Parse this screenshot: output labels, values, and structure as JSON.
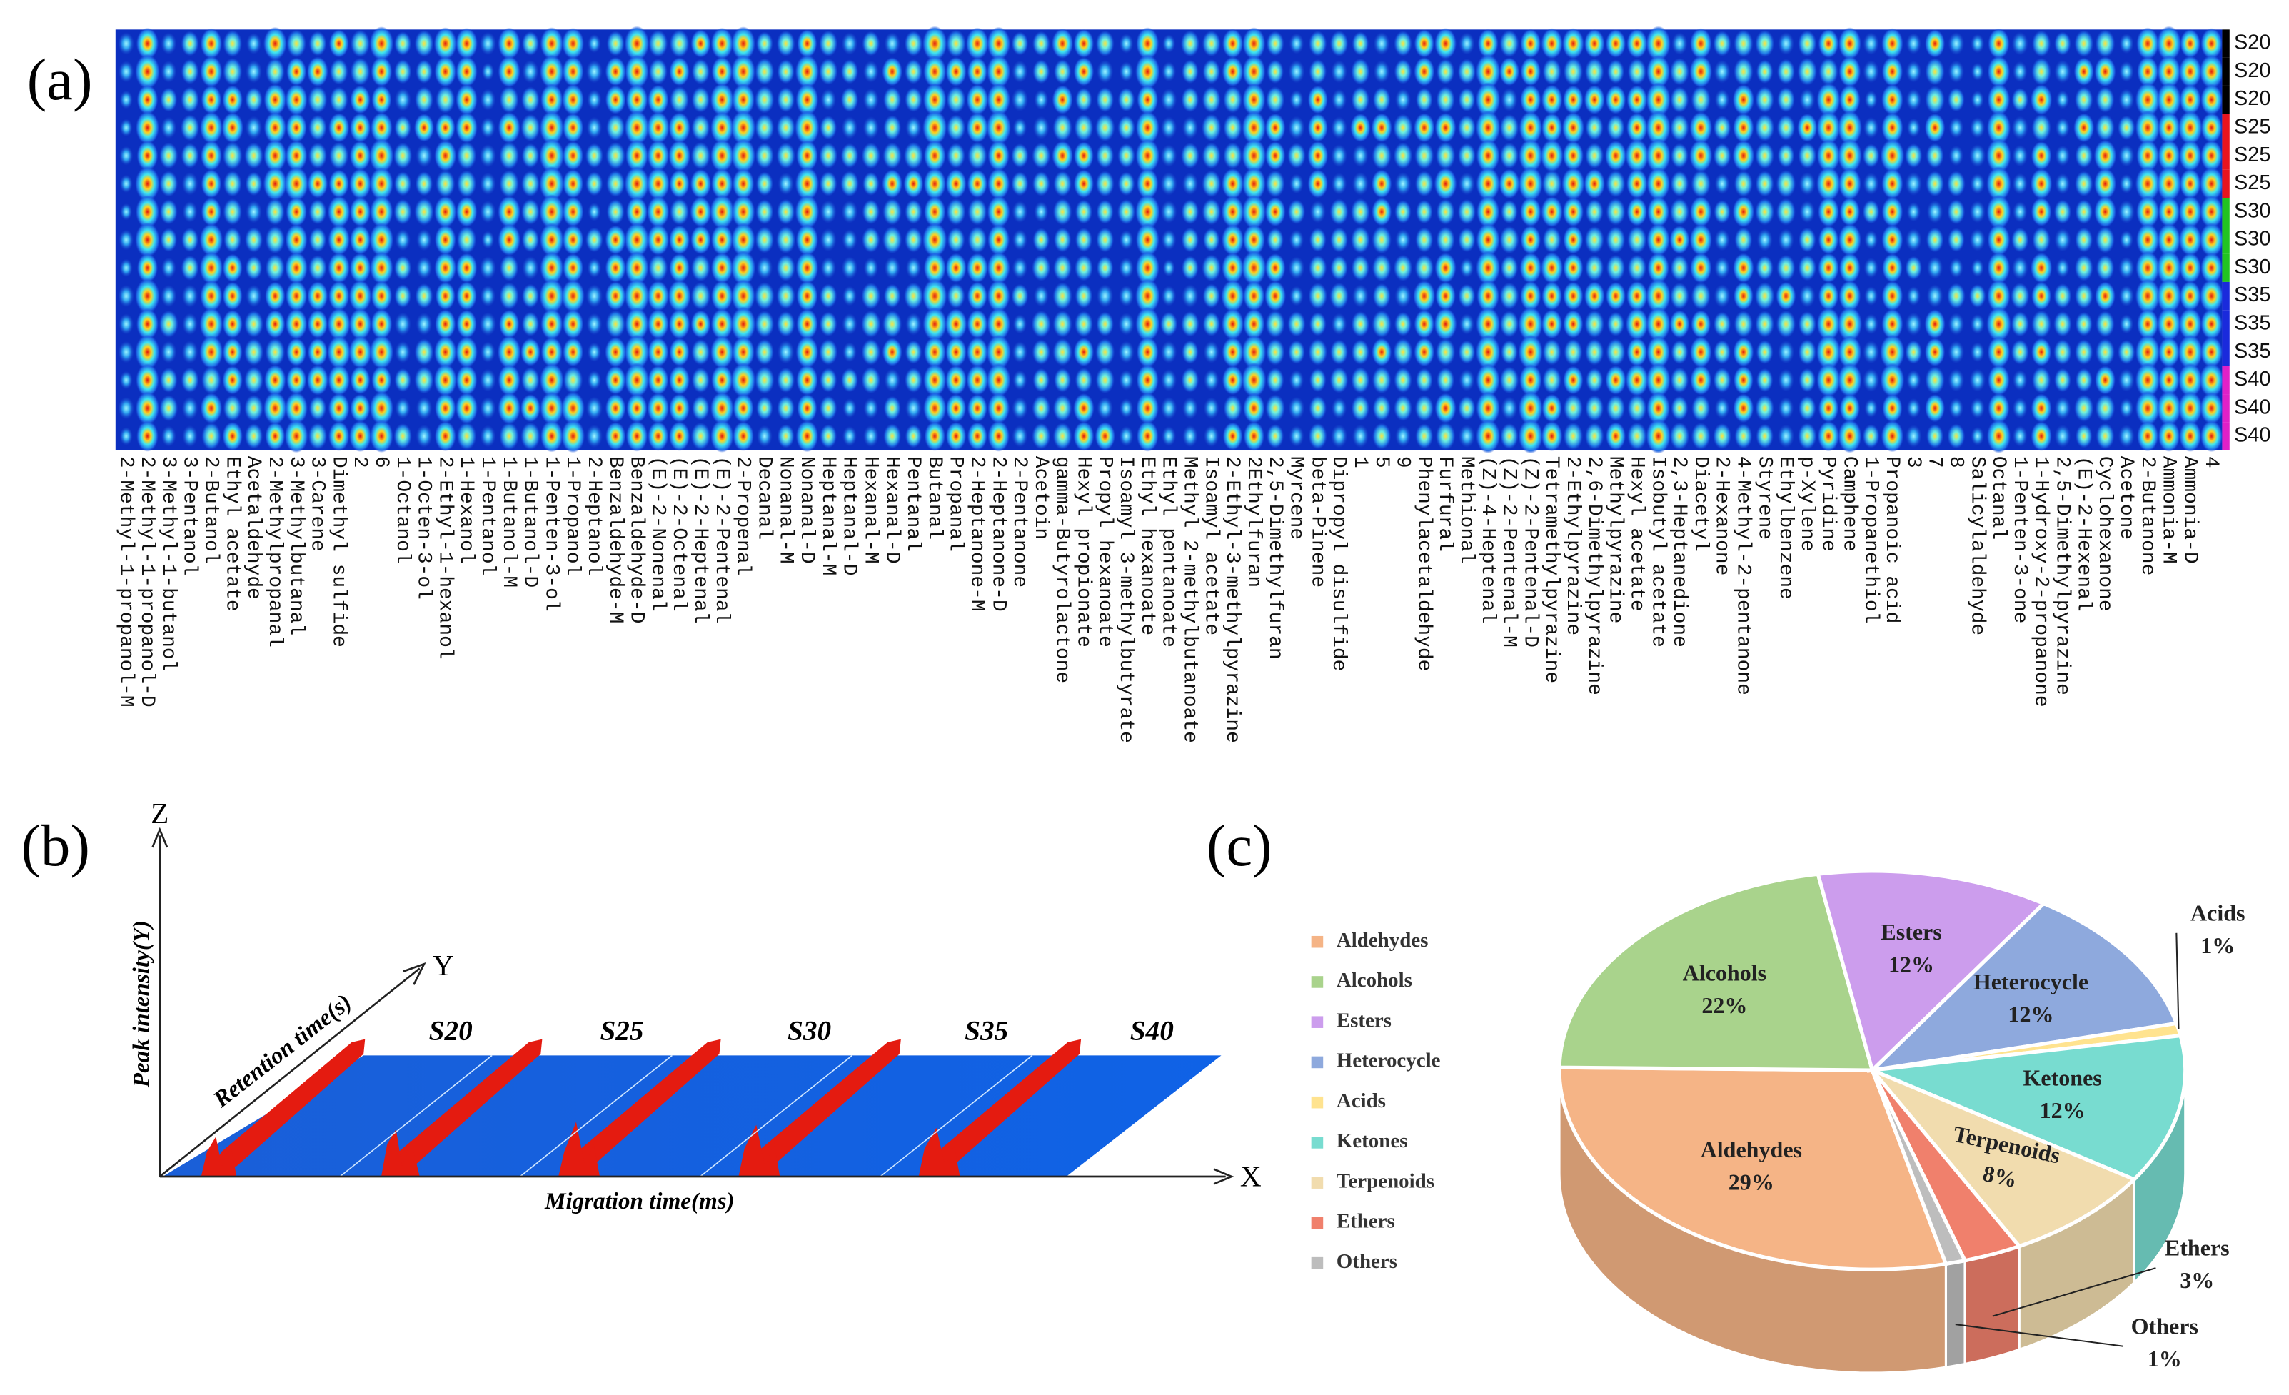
{
  "panel_labels": [
    "(a)",
    "(b)",
    "(c)"
  ],
  "panel_a": {
    "column_labels": [
      "2-Methyl-1-propanol-M",
      "2-Methyl-1-propanol-D",
      "3-Methyl-1-butanol",
      "3-Pentanol",
      "2-Butanol",
      "Ethyl acetate",
      "Acetaldehyde",
      "2-Methylpropanal",
      "3-Methylbutanal",
      "3-Carene",
      "Dimethyl sulfide",
      "2",
      "6",
      "1-Octanol",
      "1-Octen-3-ol",
      "2-Ethyl-1-hexanol",
      "1-Hexanol",
      "1-Pentanol",
      "1-Butanol-M",
      "1-Butanol-D",
      "1-Penten-3-ol",
      "1-Propanol",
      "2-Heptanol",
      "Benzaldehyde-M",
      "Benzaldehyde-D",
      "(E)-2-Nonenal",
      "(E)-2-Octenal",
      "(E)-2-Heptenal",
      "(E)-2-Pentenal",
      "2-Propenal",
      "Decanal",
      "Nonanal-M",
      "Nonanal-D",
      "Heptanal-M",
      "Heptanal-D",
      "Hexanal-M",
      "Hexanal-D",
      "Pentanal",
      "Butanal",
      "Propanal",
      "2-Heptanone-M",
      "2-Heptanone-D",
      "2-Pentanone",
      "Acetoin",
      "gamma-Butyrolactone",
      "Hexyl propionate",
      "Propyl hexanoate",
      "Isoamyl 3-methylbutyrate",
      "Ethyl hexanoate",
      "Ethyl pentanoate",
      "Methyl 2-methylbutanoate",
      "Isoamyl acetate",
      "2-Ethyl-3-methylpyrazine",
      "2Ethylfuran",
      "2,5-Dimethylfuran",
      "Myrcene",
      "beta-Pinene",
      "Dipropyl disulfide",
      "1",
      "5",
      "9",
      "Phenylacetaldehyde",
      "Furfural",
      "Methional",
      "(Z)-4-Heptenal",
      "(Z)-2-Pentenal-M",
      "(Z)-2-Pentenal-D",
      "Tetramethylpyrazine",
      "2-Ethylpyrazine",
      "2,6-Dimethylpyrazine",
      "Methylpyrazine",
      "Hexyl acetate",
      "Isobutyl acetate",
      "2,3-Heptanedione",
      "Diacetyl",
      "2-Hexanone",
      "4-Methyl-2-pentanone",
      "Styrene",
      "Ethylbenzene",
      "p-Xylene",
      "Pyridine",
      "Camphene",
      "1-Propanethiol",
      "Propanoic acid",
      "3",
      "7",
      "8",
      "Salicylaldehyde",
      "Octanal",
      "1-Penten-3-one",
      "1-Hydroxy-2-propanone",
      "2,5-Dimethylpyrazine",
      "(E)-2-Hexenal",
      "Cyclohexanone",
      "Acetone",
      "2-Butanone",
      "Ammonia-M",
      "Ammonia-D",
      "4"
    ],
    "row_labels": [
      "S20",
      "S20",
      "S20",
      "S25",
      "S25",
      "S25",
      "S30",
      "S30",
      "S30",
      "S35",
      "S35",
      "S35",
      "S40",
      "S40",
      "S40"
    ],
    "row_colors": [
      "#000000",
      "#000000",
      "#000000",
      "#e8141e",
      "#e8141e",
      "#e8141e",
      "#22c322",
      "#22c322",
      "#22c322",
      "#1a2adc",
      "#1a2adc",
      "#1a2adc",
      "#e020c8",
      "#e020c8",
      "#e020c8"
    ]
  },
  "panel_b": {
    "axis_z": "Z",
    "axis_y": "Y",
    "axis_x": "X",
    "z_title": "Peak intensity(Y)",
    "y_title": "Retention time(s)",
    "x_title": "Migration time(ms)",
    "sample_labels": [
      "S20",
      "S25",
      "S30",
      "S35",
      "S40"
    ]
  },
  "chart_data": {
    "type": "pie",
    "categories": [
      "Aldehydes",
      "Alcohols",
      "Esters",
      "Heterocycle",
      "Acids",
      "Ketones",
      "Terpenoids",
      "Ethers",
      "Others"
    ],
    "values": [
      29,
      22,
      12,
      12,
      1,
      12,
      8,
      3,
      1
    ],
    "value_labels": [
      "29%",
      "22%",
      "12%",
      "12%",
      "1%",
      "12%",
      "8%",
      "3%",
      "1%"
    ],
    "colors": [
      "#f5b486",
      "#a9d38c",
      "#cc9ded",
      "#8ea9dd",
      "#ffe38f",
      "#78dcd0",
      "#f1dcae",
      "#f0806c",
      "#bdbdbd"
    ],
    "legend": "left"
  }
}
